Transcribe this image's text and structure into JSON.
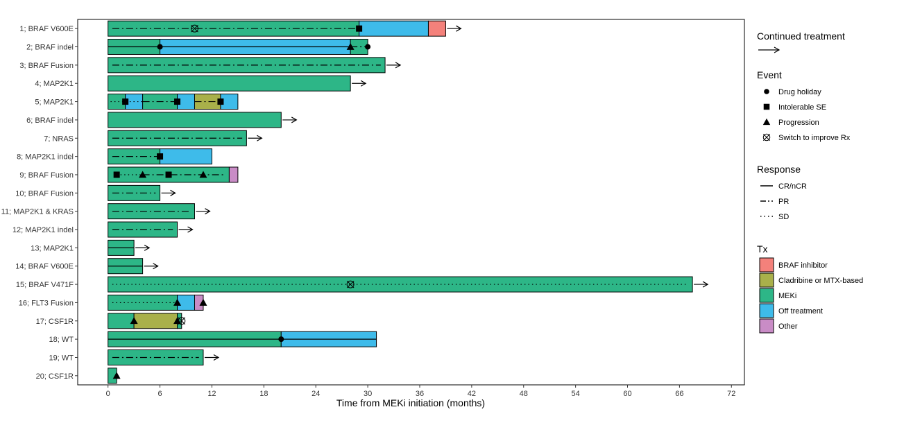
{
  "chart_data": {
    "type": "swimmer",
    "xlabel": "Time from MEKi initiation (months)",
    "xlim": [
      -3.5,
      73.5
    ],
    "xticks": [
      0,
      6,
      12,
      18,
      24,
      30,
      36,
      42,
      48,
      54,
      60,
      66,
      72
    ],
    "grid": false,
    "legend_position": "right",
    "tx_colors": {
      "BRAF inhibitor": "#f4817b",
      "Cladribine or MTX-based": "#a9b04a",
      "MEKi": "#2db687",
      "Off treatment": "#3ebbea",
      "Other": "#c98cc6"
    },
    "patients": [
      {
        "label": "1; BRAF V600E",
        "arrow": true,
        "segments": [
          {
            "tx": "MEKi",
            "start": 0,
            "end": 29
          },
          {
            "tx": "Off treatment",
            "start": 29,
            "end": 37
          },
          {
            "tx": "BRAF inhibitor",
            "start": 37,
            "end": 39
          }
        ],
        "responses": [
          {
            "type": "PR",
            "start": 0.5,
            "end": 29
          }
        ],
        "events": [
          {
            "type": "Switch to improve Rx",
            "t": 10
          },
          {
            "type": "Intolerable SE",
            "t": 29
          }
        ]
      },
      {
        "label": "2; BRAF indel",
        "arrow": false,
        "segments": [
          {
            "tx": "MEKi",
            "start": 0,
            "end": 6
          },
          {
            "tx": "Off treatment",
            "start": 6,
            "end": 28
          },
          {
            "tx": "MEKi",
            "start": 28,
            "end": 30
          }
        ],
        "responses": [
          {
            "type": "CR/nCR",
            "start": 0,
            "end": 28
          },
          {
            "type": "PR",
            "start": 28,
            "end": 30
          }
        ],
        "events": [
          {
            "type": "Drug holiday",
            "t": 6
          },
          {
            "type": "Progression",
            "t": 28
          },
          {
            "type": "Drug holiday",
            "t": 30
          }
        ]
      },
      {
        "label": "3; BRAF Fusion",
        "arrow": true,
        "segments": [
          {
            "tx": "MEKi",
            "start": 0,
            "end": 32
          }
        ],
        "responses": [
          {
            "type": "PR",
            "start": 0.5,
            "end": 31.5
          }
        ],
        "events": []
      },
      {
        "label": "4; MAP2K1",
        "arrow": true,
        "segments": [
          {
            "tx": "MEKi",
            "start": 0,
            "end": 28
          }
        ],
        "responses": [],
        "events": []
      },
      {
        "label": "5; MAP2K1",
        "arrow": false,
        "segments": [
          {
            "tx": "MEKi",
            "start": 0,
            "end": 2
          },
          {
            "tx": "Off treatment",
            "start": 2,
            "end": 4
          },
          {
            "tx": "MEKi",
            "start": 4,
            "end": 8
          },
          {
            "tx": "Off treatment",
            "start": 8,
            "end": 10
          },
          {
            "tx": "Cladribine or MTX-based",
            "start": 10,
            "end": 13
          },
          {
            "tx": "Off treatment",
            "start": 13,
            "end": 15
          }
        ],
        "responses": [
          {
            "type": "SD",
            "start": 0.3,
            "end": 4
          },
          {
            "type": "PR",
            "start": 4,
            "end": 8
          },
          {
            "type": "PR",
            "start": 10,
            "end": 13
          }
        ],
        "events": [
          {
            "type": "Intolerable SE",
            "t": 2
          },
          {
            "type": "Intolerable SE",
            "t": 8
          },
          {
            "type": "Intolerable SE",
            "t": 13
          }
        ]
      },
      {
        "label": "6; BRAF indel",
        "arrow": true,
        "segments": [
          {
            "tx": "MEKi",
            "start": 0,
            "end": 20
          }
        ],
        "responses": [],
        "events": []
      },
      {
        "label": "7; NRAS",
        "arrow": true,
        "segments": [
          {
            "tx": "MEKi",
            "start": 0,
            "end": 16
          }
        ],
        "responses": [
          {
            "type": "PR",
            "start": 0.5,
            "end": 15.5
          }
        ],
        "events": []
      },
      {
        "label": "8; MAP2K1 indel",
        "arrow": false,
        "segments": [
          {
            "tx": "MEKi",
            "start": 0,
            "end": 6
          },
          {
            "tx": "Off treatment",
            "start": 6,
            "end": 12
          }
        ],
        "responses": [
          {
            "type": "PR",
            "start": 0.5,
            "end": 6
          }
        ],
        "events": [
          {
            "type": "Intolerable SE",
            "t": 6
          }
        ]
      },
      {
        "label": "9; BRAF Fusion",
        "arrow": false,
        "segments": [
          {
            "tx": "MEKi",
            "start": 0,
            "end": 14
          },
          {
            "tx": "Other",
            "start": 14,
            "end": 15
          }
        ],
        "responses": [
          {
            "type": "SD",
            "start": 1,
            "end": 4
          },
          {
            "type": "PR",
            "start": 4,
            "end": 13.5
          }
        ],
        "events": [
          {
            "type": "Intolerable SE",
            "t": 1
          },
          {
            "type": "Progression",
            "t": 4
          },
          {
            "type": "Intolerable SE",
            "t": 7
          },
          {
            "type": "Progression",
            "t": 11
          }
        ]
      },
      {
        "label": "10; BRAF Fusion",
        "arrow": true,
        "segments": [
          {
            "tx": "MEKi",
            "start": 0,
            "end": 6
          }
        ],
        "responses": [
          {
            "type": "PR",
            "start": 0.5,
            "end": 5.5
          }
        ],
        "events": []
      },
      {
        "label": "11; MAP2K1 & KRAS",
        "arrow": true,
        "segments": [
          {
            "tx": "MEKi",
            "start": 0,
            "end": 10
          }
        ],
        "responses": [
          {
            "type": "PR",
            "start": 0.5,
            "end": 9.5
          }
        ],
        "events": []
      },
      {
        "label": "12; MAP2K1 indel",
        "arrow": true,
        "segments": [
          {
            "tx": "MEKi",
            "start": 0,
            "end": 8
          }
        ],
        "responses": [
          {
            "type": "PR",
            "start": 0.5,
            "end": 7.5
          }
        ],
        "events": []
      },
      {
        "label": "13; MAP2K1",
        "arrow": true,
        "segments": [
          {
            "tx": "MEKi",
            "start": 0,
            "end": 3
          }
        ],
        "responses": [
          {
            "type": "CR/nCR",
            "start": 0,
            "end": 3
          }
        ],
        "events": []
      },
      {
        "label": "14; BRAF V600E",
        "arrow": true,
        "segments": [
          {
            "tx": "MEKi",
            "start": 0,
            "end": 4
          }
        ],
        "responses": [
          {
            "type": "CR/nCR",
            "start": 0,
            "end": 4
          }
        ],
        "events": []
      },
      {
        "label": "15; BRAF V471F",
        "arrow": true,
        "segments": [
          {
            "tx": "MEKi",
            "start": 0,
            "end": 67.5
          }
        ],
        "responses": [
          {
            "type": "SD",
            "start": 0.5,
            "end": 67
          }
        ],
        "events": [
          {
            "type": "Switch to improve Rx",
            "t": 28
          }
        ]
      },
      {
        "label": "16; FLT3 Fusion",
        "arrow": false,
        "segments": [
          {
            "tx": "MEKi",
            "start": 0,
            "end": 8
          },
          {
            "tx": "Off treatment",
            "start": 8,
            "end": 10
          },
          {
            "tx": "Other",
            "start": 10,
            "end": 11
          }
        ],
        "responses": [
          {
            "type": "SD",
            "start": 0.5,
            "end": 8
          }
        ],
        "events": [
          {
            "type": "Progression",
            "t": 8
          },
          {
            "type": "Progression",
            "t": 11
          }
        ]
      },
      {
        "label": "17; CSF1R",
        "arrow": false,
        "segments": [
          {
            "tx": "MEKi",
            "start": 0,
            "end": 3
          },
          {
            "tx": "Cladribine or MTX-based",
            "start": 3,
            "end": 8
          },
          {
            "tx": "MEKi",
            "start": 8,
            "end": 8.5
          }
        ],
        "responses": [],
        "events": [
          {
            "type": "Progression",
            "t": 3
          },
          {
            "type": "Progression",
            "t": 8
          },
          {
            "type": "Switch to improve Rx",
            "t": 8.5
          }
        ]
      },
      {
        "label": "18; WT",
        "arrow": false,
        "segments": [
          {
            "tx": "MEKi",
            "start": 0,
            "end": 20
          },
          {
            "tx": "Off treatment",
            "start": 20,
            "end": 31
          }
        ],
        "responses": [
          {
            "type": "CR/nCR",
            "start": 0,
            "end": 31
          }
        ],
        "events": [
          {
            "type": "Drug holiday",
            "t": 20
          }
        ]
      },
      {
        "label": "19; WT",
        "arrow": true,
        "segments": [
          {
            "tx": "MEKi",
            "start": 0,
            "end": 11
          }
        ],
        "responses": [
          {
            "type": "PR",
            "start": 0.5,
            "end": 10.5
          }
        ],
        "events": []
      },
      {
        "label": "20; CSF1R",
        "arrow": false,
        "segments": [
          {
            "tx": "MEKi",
            "start": 0,
            "end": 1
          }
        ],
        "responses": [],
        "events": [
          {
            "type": "Progression",
            "t": 1
          }
        ]
      }
    ],
    "legend": {
      "continued_title": "Continued treatment",
      "event_title": "Event",
      "events": [
        {
          "label": "Drug holiday",
          "symbol": "circle"
        },
        {
          "label": "Intolerable SE",
          "symbol": "square"
        },
        {
          "label": "Progression",
          "symbol": "triangle"
        },
        {
          "label": "Switch to improve Rx",
          "symbol": "crossed-circle"
        }
      ],
      "response_title": "Response",
      "responses": [
        {
          "label": "CR/nCR",
          "style": "solid"
        },
        {
          "label": "PR",
          "style": "dashdot"
        },
        {
          "label": "SD",
          "style": "dotted"
        }
      ],
      "tx_title": "Tx",
      "tx": [
        "BRAF inhibitor",
        "Cladribine or MTX-based",
        "MEKi",
        "Off treatment",
        "Other"
      ]
    }
  }
}
